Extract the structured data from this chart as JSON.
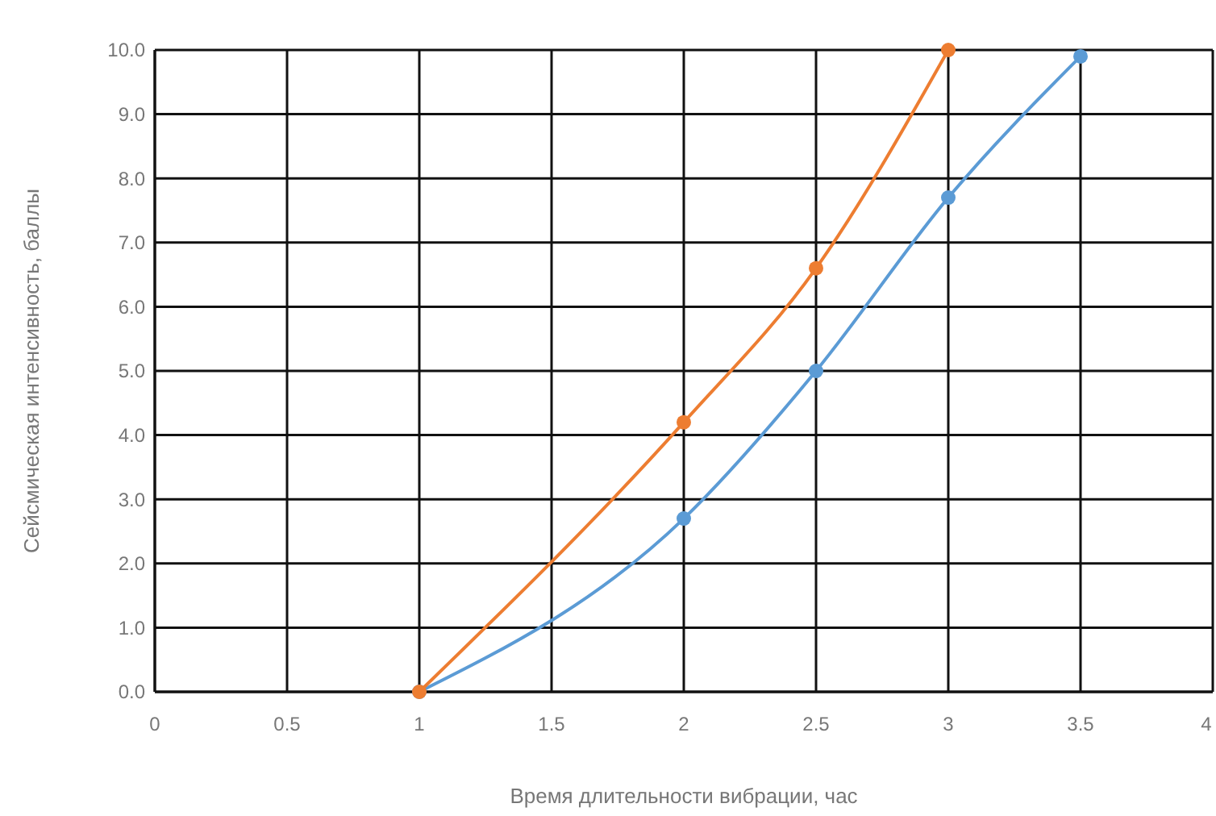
{
  "chart_data": {
    "type": "line",
    "xlabel": "Время длительности вибрации, час",
    "ylabel": "Сейсмическая интенсивность, баллы",
    "series": [
      {
        "color": "#5b9bd5",
        "x": [
          1,
          2,
          2.5,
          3,
          3.5
        ],
        "values": [
          0,
          2.7,
          5.0,
          7.7,
          9.9
        ]
      },
      {
        "color": "#ed7d31",
        "x": [
          1,
          2,
          2.5,
          3
        ],
        "values": [
          0,
          4.2,
          6.6,
          10.0
        ]
      }
    ],
    "xlim": [
      0,
      4
    ],
    "xticks": [
      0,
      {
        "value": 0.5,
        "label": "0.5"
      },
      1,
      {
        "value": 1.5,
        "label": "1.5"
      },
      2,
      {
        "value": 2.5,
        "label": "2.5"
      },
      3,
      {
        "value": 3.5,
        "label": "3.5"
      },
      4
    ],
    "ylim": [
      0,
      10
    ],
    "yticks": [
      {
        "value": 0,
        "label": "0.0"
      },
      {
        "value": 1,
        "label": "1.0"
      },
      {
        "value": 2,
        "label": "2.0"
      },
      {
        "value": 3,
        "label": "3.0"
      },
      {
        "value": 4,
        "label": "4.0"
      },
      {
        "value": 5,
        "label": "5.0"
      },
      {
        "value": 6,
        "label": "6.0"
      },
      {
        "value": 7,
        "label": "7.0"
      },
      {
        "value": 8,
        "label": "8.0"
      },
      {
        "value": 9,
        "label": "9.0"
      },
      {
        "value": 10,
        "label": "10.0"
      }
    ],
    "grid": true,
    "marker": "circle",
    "line_style": "solid"
  }
}
